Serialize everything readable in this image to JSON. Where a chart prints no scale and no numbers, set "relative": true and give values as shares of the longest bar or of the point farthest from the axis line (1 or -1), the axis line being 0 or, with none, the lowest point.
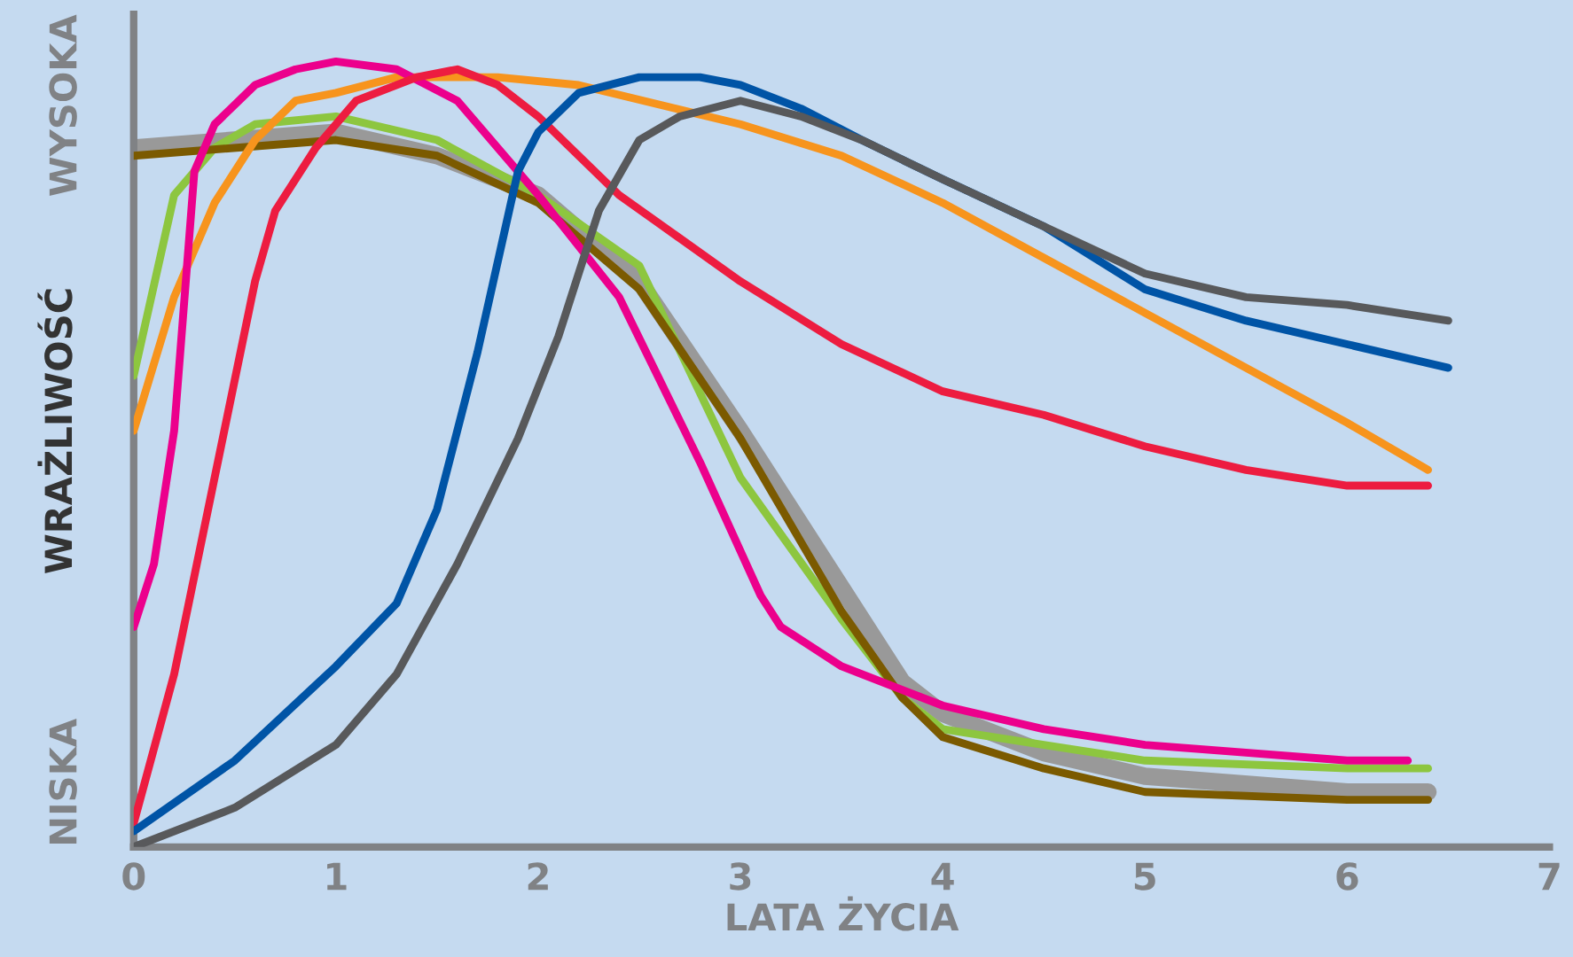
{
  "chart_data": {
    "type": "line",
    "relative": true,
    "xlabel": "LATA ŻYCIA",
    "ylabel": "WRAŻLIWOŚĆ",
    "annotations": [
      "NISKA",
      "WYSOKA"
    ],
    "xlim": [
      0,
      7
    ],
    "xticks": [
      0,
      1,
      2,
      3,
      4,
      5,
      6,
      7
    ],
    "grid": false,
    "legend": false,
    "marker": "none",
    "line_style": "solid",
    "series": [
      {
        "color": "#8dc63f",
        "x": [
          0,
          0.2,
          0.4,
          0.6,
          1.0,
          1.5,
          2.0,
          2.5,
          3.0,
          3.5,
          3.8,
          4.0,
          4.5,
          5.0,
          6.0,
          6.4
        ],
        "values": [
          0.6,
          0.83,
          0.89,
          0.92,
          0.93,
          0.9,
          0.83,
          0.74,
          0.47,
          0.29,
          0.19,
          0.15,
          0.13,
          0.11,
          0.1,
          0.1
        ]
      },
      {
        "color": "#7b5a00",
        "x": [
          0,
          1.0,
          1.5,
          2.0,
          2.5,
          3.0,
          3.5,
          3.8,
          4.0,
          4.5,
          5.0,
          6.0,
          6.4
        ],
        "values": [
          0.88,
          0.9,
          0.88,
          0.82,
          0.71,
          0.52,
          0.3,
          0.19,
          0.14,
          0.1,
          0.07,
          0.06,
          0.06
        ]
      },
      {
        "color": "#999999",
        "x": [
          0,
          1.0,
          1.5,
          2.0,
          2.5,
          3.0,
          3.5,
          3.8,
          4.0,
          4.5,
          5.0,
          6.0,
          6.4
        ],
        "values": [
          0.89,
          0.91,
          0.88,
          0.83,
          0.72,
          0.53,
          0.33,
          0.21,
          0.17,
          0.12,
          0.09,
          0.07,
          0.07
        ]
      },
      {
        "color": "#f7941d",
        "x": [
          0,
          0.2,
          0.4,
          0.6,
          0.8,
          1.0,
          1.3,
          1.8,
          2.2,
          3.0,
          3.5,
          4.0,
          4.5,
          5.0,
          5.5,
          6.0,
          6.4
        ],
        "values": [
          0.53,
          0.7,
          0.82,
          0.9,
          0.95,
          0.96,
          0.98,
          0.98,
          0.97,
          0.92,
          0.88,
          0.82,
          0.75,
          0.68,
          0.61,
          0.54,
          0.48
        ]
      },
      {
        "color": "#ec008c",
        "x": [
          0,
          0.1,
          0.2,
          0.3,
          0.4,
          0.6,
          0.8,
          1.0,
          1.3,
          1.6,
          2.0,
          2.4,
          2.8,
          3.1,
          3.2,
          3.5,
          4.0,
          4.5,
          5.0,
          5.5,
          6.0,
          6.3
        ],
        "values": [
          0.28,
          0.36,
          0.53,
          0.86,
          0.92,
          0.97,
          0.99,
          1.0,
          0.99,
          0.95,
          0.83,
          0.7,
          0.49,
          0.32,
          0.28,
          0.23,
          0.18,
          0.15,
          0.13,
          0.12,
          0.11,
          0.11
        ]
      },
      {
        "color": "#ed1c40",
        "x": [
          0,
          0.2,
          0.4,
          0.6,
          0.7,
          0.9,
          1.1,
          1.4,
          1.6,
          1.8,
          2.0,
          2.4,
          3.0,
          3.5,
          4.0,
          4.5,
          5.0,
          5.5,
          6.0,
          6.4
        ],
        "values": [
          0.03,
          0.22,
          0.47,
          0.72,
          0.81,
          0.89,
          0.95,
          0.98,
          0.99,
          0.97,
          0.93,
          0.83,
          0.72,
          0.64,
          0.58,
          0.55,
          0.51,
          0.48,
          0.46,
          0.46
        ]
      },
      {
        "color": "#0054a6",
        "x": [
          0,
          0.5,
          1.0,
          1.3,
          1.5,
          1.7,
          1.9,
          2.0,
          2.2,
          2.5,
          2.8,
          3.0,
          3.3,
          3.6,
          4.0,
          4.5,
          5.0,
          5.5,
          6.0,
          6.5
        ],
        "values": [
          0.02,
          0.11,
          0.23,
          0.31,
          0.43,
          0.63,
          0.86,
          0.91,
          0.96,
          0.98,
          0.98,
          0.97,
          0.94,
          0.9,
          0.85,
          0.79,
          0.71,
          0.67,
          0.64,
          0.61
        ]
      },
      {
        "color": "#58595b",
        "x": [
          0,
          0.5,
          1.0,
          1.3,
          1.6,
          1.9,
          2.1,
          2.3,
          2.5,
          2.7,
          3.0,
          3.3,
          3.6,
          4.0,
          4.5,
          5.0,
          5.5,
          6.0,
          6.5
        ],
        "values": [
          0,
          0.05,
          0.13,
          0.22,
          0.36,
          0.52,
          0.65,
          0.81,
          0.9,
          0.93,
          0.95,
          0.93,
          0.9,
          0.85,
          0.79,
          0.73,
          0.7,
          0.69,
          0.67
        ]
      }
    ]
  }
}
